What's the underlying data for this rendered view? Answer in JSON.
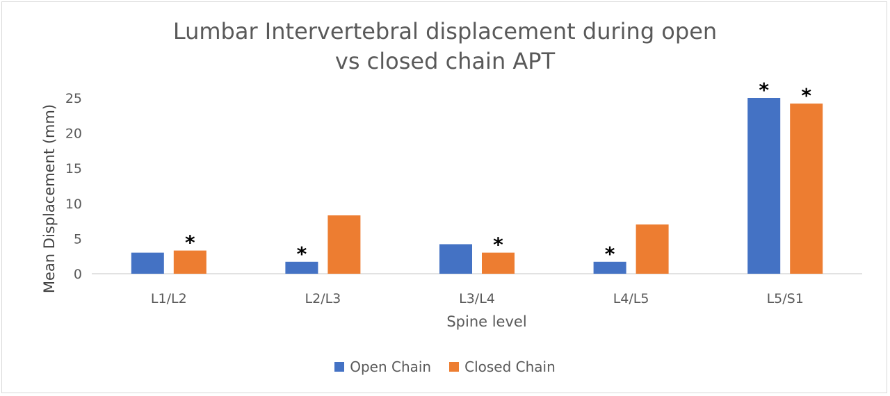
{
  "chart_data": {
    "type": "bar",
    "title_lines": [
      "Lumbar Intervertebral displacement during open",
      "vs closed chain APT"
    ],
    "xlabel": "Spine level",
    "ylabel": "Mean Displacement (mm)",
    "ylim": [
      0,
      25
    ],
    "yticks": [
      0,
      5,
      10,
      15,
      20,
      25
    ],
    "categories": [
      "L1/L2",
      "L2/L3",
      "L3/L4",
      "L4/L5",
      "L5/S1"
    ],
    "series": [
      {
        "name": "Open Chain",
        "color": "#4472c4",
        "values": [
          3.0,
          1.7,
          4.2,
          1.7,
          25.0
        ],
        "significant": [
          false,
          true,
          false,
          true,
          true
        ]
      },
      {
        "name": "Closed Chain",
        "color": "#ed7d31",
        "values": [
          3.3,
          8.3,
          3.0,
          7.0,
          24.2
        ],
        "significant": [
          true,
          false,
          true,
          false,
          true
        ]
      }
    ],
    "significance_marker": "*",
    "legend_position": "bottom",
    "grid": false
  }
}
